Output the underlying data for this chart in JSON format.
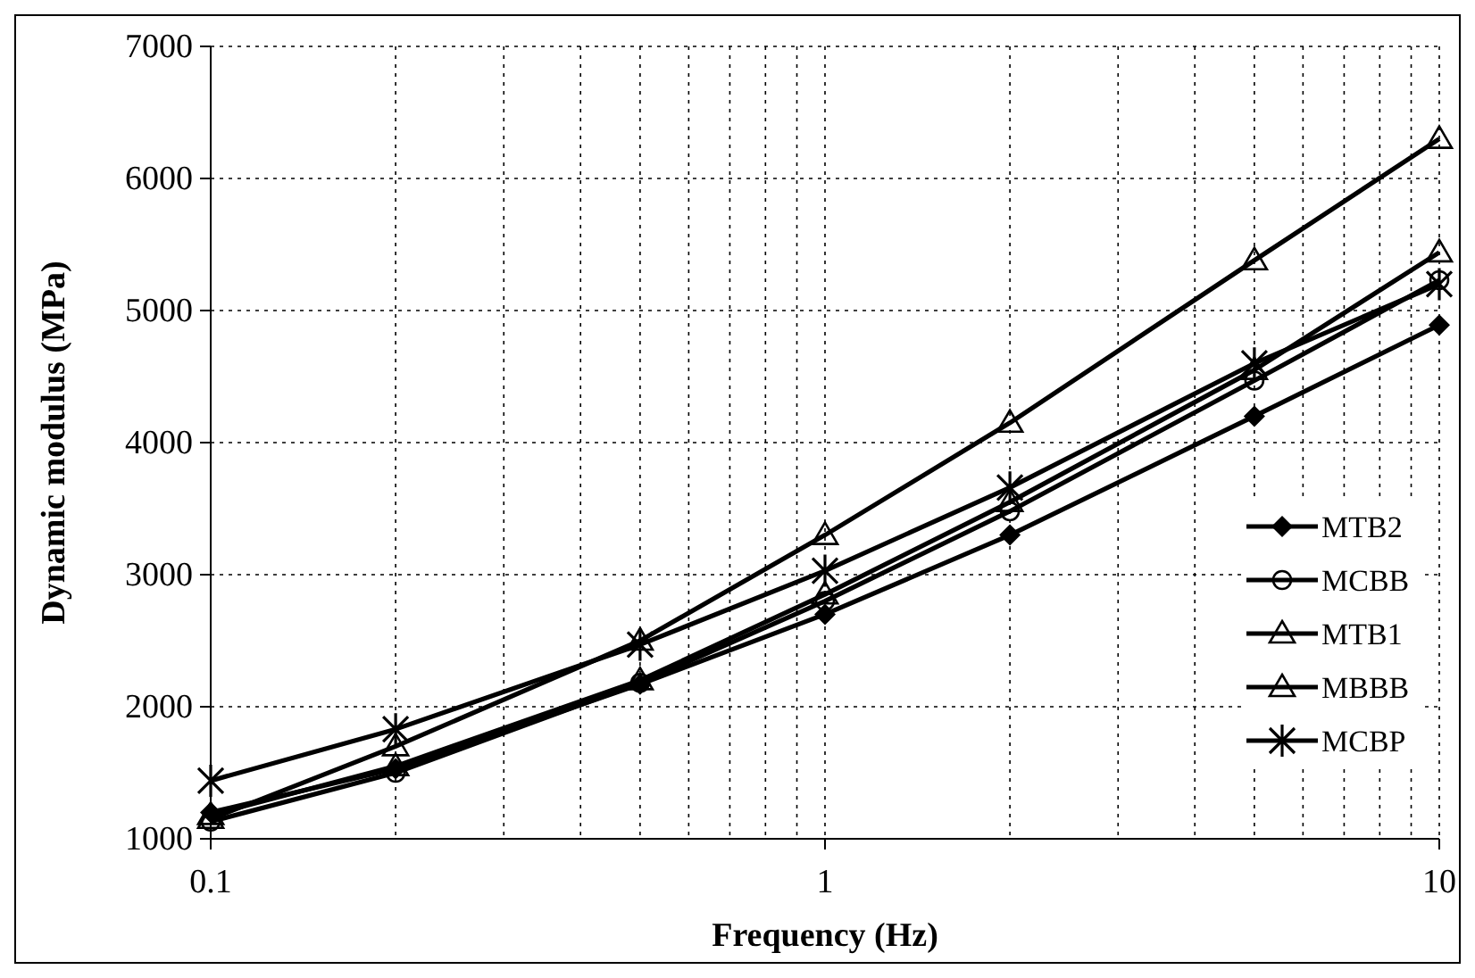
{
  "chart_data": {
    "type": "line",
    "xlabel": "Frequency (Hz)",
    "ylabel": "Dynamic modulus (MPa)",
    "log": "x",
    "x": [
      0.1,
      0.2,
      0.5,
      1,
      2,
      5,
      10
    ],
    "xlim": [
      0.1,
      10
    ],
    "xticks": [
      0.1,
      {
        "value": 0.2,
        "label": null
      },
      {
        "value": 0.3,
        "label": null
      },
      {
        "value": 0.4,
        "label": null
      },
      {
        "value": 0.5,
        "label": null
      },
      {
        "value": 0.6,
        "label": null
      },
      {
        "value": 0.7,
        "label": null
      },
      {
        "value": 0.8,
        "label": null
      },
      {
        "value": 0.9,
        "label": null
      },
      1,
      {
        "value": 2,
        "label": null
      },
      {
        "value": 3,
        "label": null
      },
      {
        "value": 4,
        "label": null
      },
      {
        "value": 5,
        "label": null
      },
      {
        "value": 6,
        "label": null
      },
      {
        "value": 7,
        "label": null
      },
      {
        "value": 8,
        "label": null
      },
      {
        "value": 9,
        "label": null
      },
      10
    ],
    "ylim": [
      1000,
      7000
    ],
    "yticks": [
      1000,
      2000,
      3000,
      4000,
      5000,
      6000,
      7000
    ],
    "grid": true,
    "legend": "bottom right",
    "line_style": "solid",
    "series": [
      {
        "name": "MTB2",
        "color": "#000000",
        "marker": "diamond",
        "values": [
          1200,
          1530,
          2170,
          2700,
          3300,
          4200,
          4890
        ]
      },
      {
        "name": "MCBB",
        "color": "#000000",
        "marker": "circle",
        "values": [
          1130,
          1500,
          2180,
          2800,
          3480,
          4470,
          5230
        ]
      },
      {
        "name": "MTB1",
        "color": "#000000",
        "marker": "triangle",
        "values": [
          1150,
          1700,
          2500,
          3300,
          4150,
          5380,
          6300
        ]
      },
      {
        "name": "MBBB",
        "color": "#000000",
        "marker": "triangle",
        "values": [
          1180,
          1550,
          2200,
          2850,
          3550,
          4550,
          5440
        ]
      },
      {
        "name": "MCBP",
        "color": "#000000",
        "marker": "cross",
        "values": [
          1440,
          1830,
          2470,
          3030,
          3660,
          4600,
          5200
        ]
      }
    ]
  }
}
